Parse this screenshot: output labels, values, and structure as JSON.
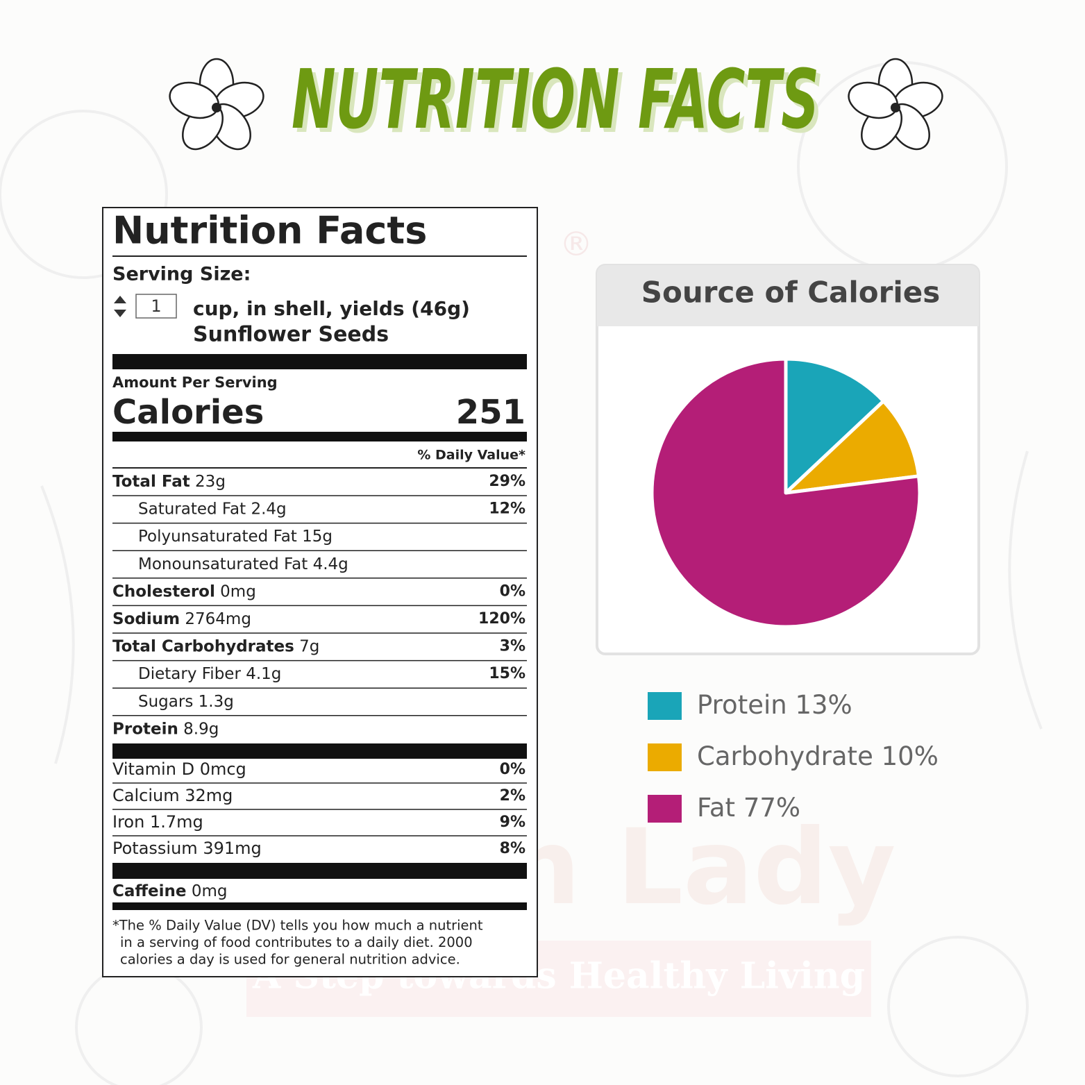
{
  "header": {
    "title": "NUTRITION FACTS"
  },
  "watermark": {
    "brand": "n Lady",
    "tagline": "A Step towards Healthy Living",
    "mark": "®"
  },
  "label": {
    "title": "Nutrition Facts",
    "serving_size_label": "Serving Size:",
    "serving_quantity": "1",
    "serving_unit": "cup, in shell, yields (46g)",
    "food": "Sunflower Seeds",
    "amount_per_serving": "Amount Per Serving",
    "calories_label": "Calories",
    "calories": 251,
    "daily_value_header": "% Daily Value*",
    "nutrients": [
      {
        "name": "Total Fat",
        "amount": "23g",
        "dv": "29%",
        "sub": [
          {
            "name": "Saturated Fat",
            "amount": "2.4g",
            "dv": "12%"
          },
          {
            "name": "Polyunsaturated Fat",
            "amount": "15g"
          },
          {
            "name": "Monounsaturated Fat",
            "amount": "4.4g"
          }
        ]
      },
      {
        "name": "Cholesterol",
        "amount": "0mg",
        "dv": "0%"
      },
      {
        "name": "Sodium",
        "amount": "2764mg",
        "dv": "120%"
      },
      {
        "name": "Total Carbohydrates",
        "amount": "7g",
        "dv": "3%",
        "sub": [
          {
            "name": "Dietary Fiber",
            "amount": "4.1g",
            "dv": "15%"
          },
          {
            "name": "Sugars",
            "amount": "1.3g"
          }
        ]
      },
      {
        "name": "Protein",
        "amount": "8.9g"
      }
    ],
    "vitamins": [
      {
        "name": "Vitamin D",
        "amount": "0mcg",
        "dv": "0%"
      },
      {
        "name": "Calcium",
        "amount": "32mg",
        "dv": "2%"
      },
      {
        "name": "Iron",
        "amount": "1.7mg",
        "dv": "9%"
      },
      {
        "name": "Potassium",
        "amount": "391mg",
        "dv": "8%"
      }
    ],
    "caffeine": {
      "name": "Caffeine",
      "amount": "0mg"
    },
    "footnote": [
      "*The % Daily Value (DV) tells you how much a nutrient",
      "in a serving of food contributes to a daily diet. 2000",
      "calories a day is used for general nutrition advice."
    ]
  },
  "chart_data": {
    "type": "pie",
    "title": "Source of Calories",
    "categories": [
      "Protein",
      "Carbohydrate",
      "Fat"
    ],
    "values": [
      13,
      10,
      77
    ],
    "value_labels": [
      "13%",
      "10%",
      "77%"
    ],
    "colors": [
      "#1aa5b8",
      "#ebab00",
      "#b41e77"
    ]
  }
}
